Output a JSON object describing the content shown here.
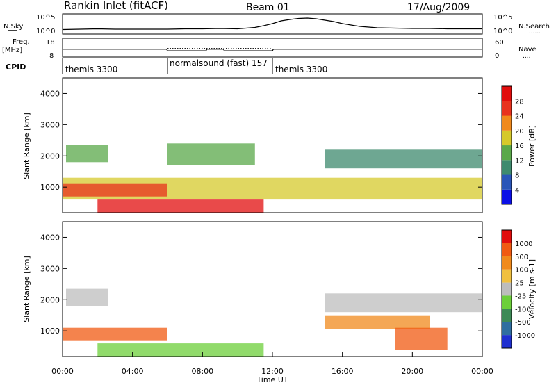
{
  "header": {
    "station": "Rankin Inlet (fitACF)",
    "beam": "Beam 01",
    "date": "17/Aug/2009"
  },
  "strip_labels": {
    "nsky": "N.Sky",
    "nsearch": "N.Search",
    "nsearch_line": ".......",
    "freq": "Freq.",
    "mhz": "[MHz]",
    "nave": "Nave",
    "nave_line": "....",
    "cpid": "CPID"
  },
  "cpid_segments": [
    {
      "label": "themis 3300",
      "start_hour": 0
    },
    {
      "label": "normalsound (fast) 157",
      "start_hour": 6
    },
    {
      "label": "themis 3300",
      "start_hour": 12
    }
  ],
  "chart_data": [
    {
      "type": "line",
      "panel": "noise",
      "left_axis_ticks": [
        "10^5",
        "10^0"
      ],
      "right_axis_ticks": [
        "10^5",
        "10^0"
      ],
      "x": [
        0,
        1,
        2,
        3,
        4,
        5,
        6,
        7,
        8,
        9,
        10,
        11,
        11.5,
        12,
        12.5,
        13,
        13.5,
        14,
        14.5,
        15,
        15.5,
        16,
        17,
        18,
        19,
        20,
        21,
        22,
        23,
        24
      ],
      "series": [
        {
          "name": "N.Sky",
          "values": [
            0.9,
            1.0,
            1.1,
            1.0,
            1.0,
            1.0,
            1.0,
            1.1,
            1.1,
            1.2,
            1.1,
            1.5,
            2.0,
            2.6,
            3.4,
            3.8,
            4.1,
            4.2,
            4.0,
            3.6,
            3.2,
            2.6,
            1.8,
            1.4,
            1.3,
            1.2,
            1.2,
            1.1,
            1.1,
            1.1
          ]
        }
      ]
    },
    {
      "type": "line",
      "panel": "frequency",
      "left_axis_ticks": [
        "18",
        "8"
      ],
      "right_axis_ticks": [
        "60",
        "0"
      ],
      "x": [
        0,
        5.95,
        6.0,
        8.2,
        8.25,
        9.2,
        9.25,
        12.0,
        12.05,
        24
      ],
      "series": [
        {
          "name": "Freq.",
          "values": [
            12.0,
            12.0,
            11.0,
            11.0,
            12.0,
            12.0,
            11.0,
            11.0,
            12.0,
            12.0
          ]
        }
      ]
    },
    {
      "type": "heatmap",
      "panel": "power",
      "ylabel": "Slant Range [km]",
      "yticks": [
        "1000",
        "2000",
        "3000",
        "4000"
      ],
      "ylim": [
        180,
        4500
      ],
      "xlim": [
        0,
        24
      ],
      "colorbar": {
        "label": "Power [dB]",
        "ticks": [
          "4",
          "8",
          "12",
          "16",
          "20",
          "24",
          "28"
        ],
        "colors": [
          "#0b10e6",
          "#2a55b8",
          "#3e8a6e",
          "#5aa84a",
          "#d6c92c",
          "#f08a1c",
          "#e8321e",
          "#e10d0d"
        ]
      },
      "bands": [
        {
          "t0": 0.2,
          "t1": 2.6,
          "r0": 1800,
          "r1": 2350,
          "level": 3
        },
        {
          "t0": 0.0,
          "t1": 24.0,
          "r0": 600,
          "r1": 1300,
          "level": 4
        },
        {
          "t0": 0.0,
          "t1": 6.0,
          "r0": 700,
          "r1": 1100,
          "level": 6
        },
        {
          "t0": 2.0,
          "t1": 11.5,
          "r0": 180,
          "r1": 600,
          "level": 7
        },
        {
          "t0": 15.0,
          "t1": 24.0,
          "r0": 1600,
          "r1": 2200,
          "level": 2
        },
        {
          "t0": 6.0,
          "t1": 11.0,
          "r0": 1700,
          "r1": 2400,
          "level": 3
        }
      ]
    },
    {
      "type": "heatmap",
      "panel": "velocity",
      "ylabel": "Slant Range [km]",
      "xlabel": "Time UT",
      "yticks": [
        "1000",
        "2000",
        "3000",
        "4000"
      ],
      "xticks": [
        "00:00",
        "04:00",
        "08:00",
        "12:00",
        "16:00",
        "20:00",
        "00:00"
      ],
      "ylim": [
        180,
        4500
      ],
      "xlim": [
        0,
        24
      ],
      "colorbar": {
        "label": "Velocity [m s-1]",
        "ticks": [
          "1000",
          "500",
          "100",
          "25",
          "-25",
          "-100",
          "-500",
          "-1000"
        ],
        "colors": [
          "#1f2fd0",
          "#2f6ea0",
          "#3d8a56",
          "#6ccf3a",
          "#bdbdbd",
          "#f0c040",
          "#f08a1c",
          "#f05a12",
          "#e10d0d"
        ]
      },
      "bands": [
        {
          "t0": 0.2,
          "t1": 2.6,
          "r0": 1800,
          "r1": 2350,
          "level": 4
        },
        {
          "t0": 0.0,
          "t1": 6.0,
          "r0": 700,
          "r1": 1100,
          "level": 7
        },
        {
          "t0": 2.0,
          "t1": 11.5,
          "r0": 180,
          "r1": 600,
          "level": 3
        },
        {
          "t0": 15.0,
          "t1": 21.0,
          "r0": 1050,
          "r1": 1500,
          "level": 6
        },
        {
          "t0": 19.0,
          "t1": 22.0,
          "r0": 400,
          "r1": 1100,
          "level": 7
        },
        {
          "t0": 15.0,
          "t1": 24.0,
          "r0": 1600,
          "r1": 2200,
          "level": 4
        }
      ]
    }
  ]
}
